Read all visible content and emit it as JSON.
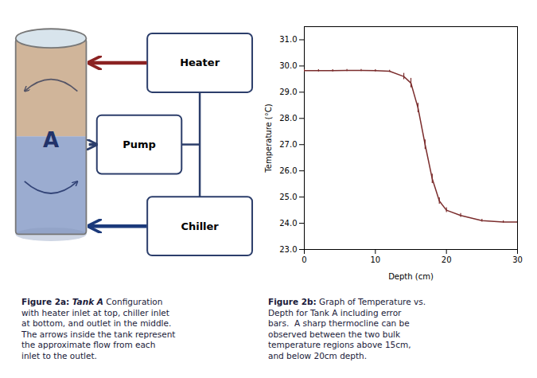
{
  "chart_data": {
    "type": "line",
    "x": [
      0,
      2,
      4,
      6,
      8,
      10,
      12,
      14,
      15,
      16,
      17,
      18,
      19,
      20,
      22,
      25,
      28,
      30
    ],
    "values": [
      29.82,
      29.82,
      29.82,
      29.83,
      29.83,
      29.82,
      29.8,
      29.6,
      29.35,
      28.4,
      27.0,
      25.7,
      24.85,
      24.5,
      24.3,
      24.1,
      24.05,
      24.05
    ],
    "errors": [
      0.04,
      0.04,
      0.04,
      0.04,
      0.04,
      0.04,
      0.04,
      0.12,
      0.18,
      0.18,
      0.18,
      0.18,
      0.12,
      0.09,
      0.07,
      0.05,
      0.04,
      0.04
    ],
    "color": "#7B2D2D",
    "xlabel": "Depth (cm)",
    "ylabel": "Temperature (°C)",
    "xlim": [
      0,
      30
    ],
    "xticks": [
      0,
      10,
      20,
      30
    ],
    "ylim": [
      23.0,
      31.5
    ],
    "yticks": [
      {
        "value": 23.0,
        "label": "23.0"
      },
      {
        "value": 24.0,
        "label": "24.0"
      },
      {
        "value": 25.0,
        "label": "25.0"
      },
      {
        "value": 26.0,
        "label": "26.0"
      },
      {
        "value": 27.0,
        "label": "27.0"
      },
      {
        "value": 28.0,
        "label": "28.0"
      },
      {
        "value": 29.0,
        "label": "29.0"
      },
      {
        "value": 30.0,
        "label": "30.0"
      },
      {
        "value": 31.0,
        "label": "31.0"
      }
    ],
    "annotations": [
      "A",
      "Heater",
      "Pump",
      "Chiller",
      "Figure 2a:",
      "Tank A",
      "Configuration",
      "with heater inlet at top, chiller inlet\nat bottom, and outlet in the middle.\nThe arrows inside the tank represent\nthe approximate flow from each\ninlet to the outlet.",
      "Figure 2b:",
      " Graph of Temperature vs.\nDepth for Tank A including error\nbars.  A sharp thermocline can be\nobserved between the two bulk\ntemperature regions above 15cm,\nand below 20cm depth."
    ],
    "grid": false
  }
}
